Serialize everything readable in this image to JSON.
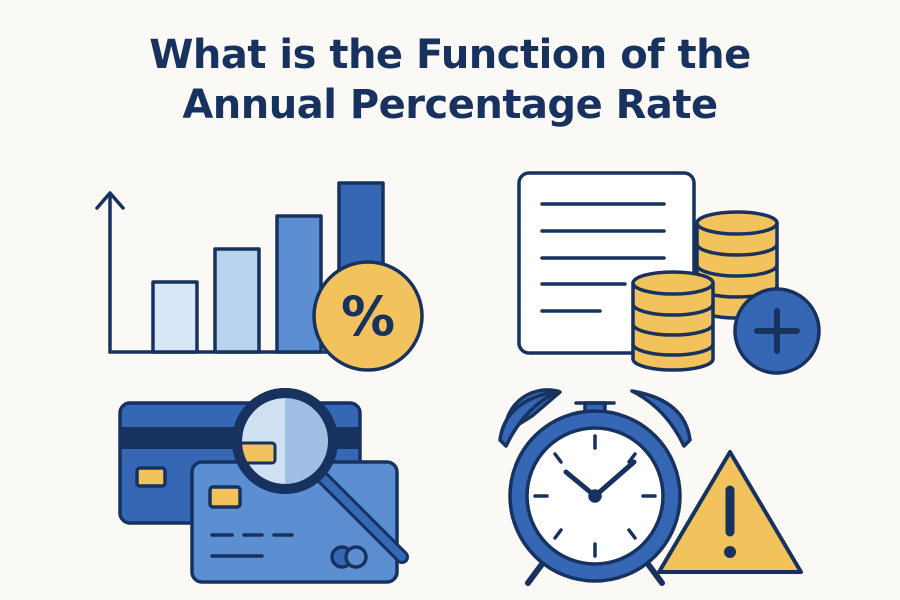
{
  "title": {
    "line1": "What is the Function of the",
    "line2": "Annual Percentage Rate"
  },
  "illustrations": [
    {
      "icon": "bar-chart-percent-icon"
    },
    {
      "icon": "document-coins-plus-icon"
    },
    {
      "icon": "credit-cards-magnifier-icon"
    },
    {
      "icon": "alarm-clock-warning-icon"
    }
  ],
  "badges": {
    "percent": "%"
  },
  "colors": {
    "navy": "#17325f",
    "blue": "#3567b5",
    "mid_blue": "#5b8fd1",
    "light_blue": "#b9d3ee",
    "pale_blue": "#d8e7f7",
    "gold": "#f2c35c",
    "background": "#fbf9f5"
  }
}
